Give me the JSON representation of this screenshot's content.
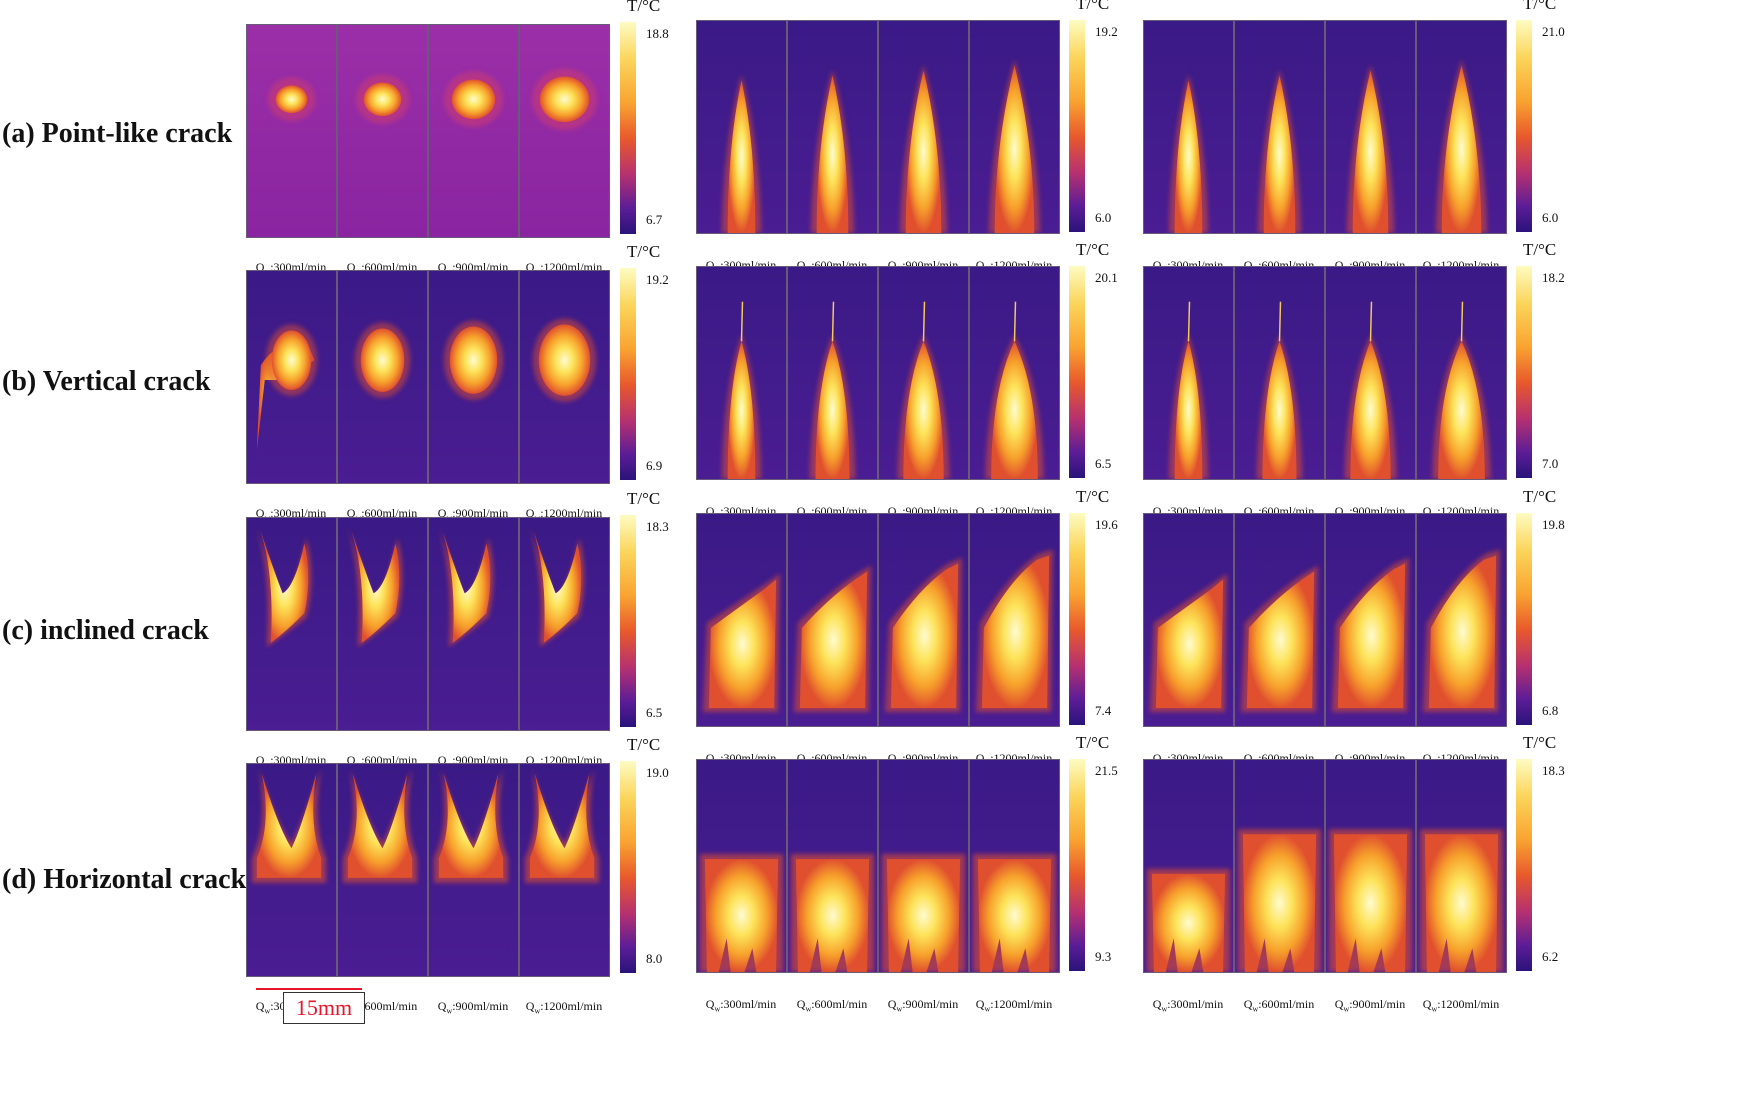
{
  "rows": [
    {
      "id": "a",
      "label": "(a) Point-like crack"
    },
    {
      "id": "b",
      "label": "(b) Vertical crack"
    },
    {
      "id": "c",
      "label": "(c) inclined crack"
    },
    {
      "id": "d",
      "label": "(d) Horizontal crack"
    }
  ],
  "flow_label_prefix": "Q",
  "flow_label_sub": "w",
  "flow_rates": [
    ":300ml/min",
    ":600ml/min",
    ":900ml/min",
    ":1200ml/min"
  ],
  "colorbar_title": "T/°C",
  "colorbars": [
    [
      {
        "max": "18.8",
        "min": "6.7"
      },
      {
        "max": "19.2",
        "min": "6.0"
      },
      {
        "max": "21.0",
        "min": "6.0"
      }
    ],
    [
      {
        "max": "19.2",
        "min": "6.9"
      },
      {
        "max": "20.1",
        "min": "6.5"
      },
      {
        "max": "18.2",
        "min": "7.0"
      }
    ],
    [
      {
        "max": "18.3",
        "min": "6.5"
      },
      {
        "max": "19.6",
        "min": "7.4"
      },
      {
        "max": "19.8",
        "min": "6.8"
      }
    ],
    [
      {
        "max": "19.0",
        "min": "8.0"
      },
      {
        "max": "21.5",
        "min": "9.3"
      },
      {
        "max": "18.3",
        "min": "6.2"
      }
    ]
  ],
  "scale_bar_label": "15mm",
  "palette": {
    "bg_cold": "#3a1780",
    "bg_warm": "#9a2ba0",
    "hot": "#fde46a",
    "mid": "#f08a2a"
  }
}
